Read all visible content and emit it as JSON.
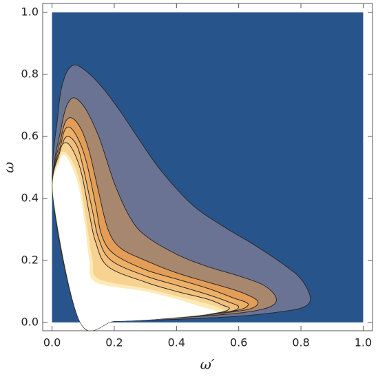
{
  "chart_data": {
    "type": "contour",
    "x_label": "ω′",
    "y_label": "ω",
    "xlim": [
      -0.03,
      1.03
    ],
    "ylim": [
      -0.027,
      1.029
    ],
    "xticks": [
      {
        "value": 0,
        "label": "0.0"
      },
      0.2,
      0.4,
      0.6,
      0.8,
      {
        "value": 1,
        "label": "1.0"
      }
    ],
    "yticks": [
      {
        "value": 0,
        "label": "0.0"
      },
      0.2,
      0.4,
      0.6,
      0.8,
      {
        "value": 1,
        "label": "1.0"
      }
    ],
    "line_color": "#2a2a2a",
    "series": [
      {
        "color": "#27548a",
        "outline": false,
        "x": [
          0,
          1,
          1,
          0
        ],
        "y": [
          0,
          0,
          1,
          1
        ]
      },
      {
        "color": "#6b7394",
        "outline": true,
        "x": [
          0.004,
          0.02,
          0.04,
          0.07,
          0.11,
          0.16,
          0.22,
          0.28,
          0.35,
          0.45,
          0.55,
          0.65,
          0.74,
          0.8,
          0.83,
          0.81,
          0.74,
          0.6,
          0.4,
          0.2,
          0.09
        ],
        "y": [
          0.4,
          0.68,
          0.79,
          0.83,
          0.81,
          0.76,
          0.68,
          0.59,
          0.49,
          0.38,
          0.31,
          0.25,
          0.19,
          0.14,
          0.08,
          0.05,
          0.035,
          0.02,
          0.01,
          0.004,
          0.002
        ]
      },
      {
        "color": "#a8876f",
        "outline": true,
        "x": [
          0.004,
          0.03,
          0.06,
          0.1,
          0.15,
          0.2,
          0.25,
          0.3,
          0.4,
          0.5,
          0.6,
          0.68,
          0.72,
          0.7,
          0.6,
          0.4,
          0.2,
          0.09
        ],
        "y": [
          0.4,
          0.63,
          0.72,
          0.7,
          0.6,
          0.45,
          0.34,
          0.28,
          0.22,
          0.18,
          0.15,
          0.12,
          0.08,
          0.05,
          0.03,
          0.015,
          0.005,
          0.002
        ]
      },
      {
        "color": "#e39d56",
        "outline": true,
        "x": [
          0.004,
          0.03,
          0.055,
          0.09,
          0.12,
          0.15,
          0.18,
          0.22,
          0.3,
          0.4,
          0.5,
          0.6,
          0.66,
          0.64,
          0.55,
          0.4,
          0.2,
          0.09
        ],
        "y": [
          0.4,
          0.6,
          0.66,
          0.63,
          0.55,
          0.42,
          0.3,
          0.24,
          0.2,
          0.16,
          0.13,
          0.1,
          0.07,
          0.045,
          0.03,
          0.015,
          0.005,
          0.002
        ]
      },
      {
        "color": "#eeb067",
        "outline": true,
        "x": [
          0.004,
          0.03,
          0.05,
          0.08,
          0.11,
          0.14,
          0.16,
          0.2,
          0.3,
          0.4,
          0.5,
          0.58,
          0.63,
          0.6,
          0.5,
          0.35,
          0.2,
          0.09
        ],
        "y": [
          0.4,
          0.58,
          0.63,
          0.6,
          0.52,
          0.38,
          0.28,
          0.22,
          0.17,
          0.14,
          0.11,
          0.08,
          0.06,
          0.04,
          0.028,
          0.014,
          0.005,
          0.002
        ]
      },
      {
        "color": "#f3c07b",
        "outline": true,
        "x": [
          0.004,
          0.03,
          0.05,
          0.08,
          0.1,
          0.13,
          0.15,
          0.19,
          0.3,
          0.4,
          0.5,
          0.57,
          0.6,
          0.57,
          0.45,
          0.3,
          0.2,
          0.09
        ],
        "y": [
          0.4,
          0.56,
          0.6,
          0.57,
          0.5,
          0.36,
          0.27,
          0.2,
          0.15,
          0.12,
          0.09,
          0.065,
          0.05,
          0.035,
          0.025,
          0.012,
          0.005,
          0.002
        ]
      },
      {
        "color": "#f8d291",
        "outline": true,
        "x": [
          0.004,
          0.025,
          0.045,
          0.07,
          0.095,
          0.12,
          0.14,
          0.18,
          0.3,
          0.4,
          0.5,
          0.55,
          0.57,
          0.54,
          0.45,
          0.3,
          0.2,
          0.09
        ],
        "y": [
          0.4,
          0.55,
          0.58,
          0.55,
          0.48,
          0.35,
          0.26,
          0.18,
          0.13,
          0.1,
          0.075,
          0.055,
          0.045,
          0.032,
          0.022,
          0.01,
          0.004,
          0.002
        ]
      },
      {
        "color": "#fcebb8",
        "outline": false,
        "x": [
          0.004,
          0.025,
          0.04,
          0.065,
          0.09,
          0.11,
          0.13,
          0.15,
          0.3,
          0.4,
          0.5,
          0.55,
          0.52,
          0.45,
          0.3,
          0.2,
          0.09
        ],
        "y": [
          0.4,
          0.53,
          0.55,
          0.52,
          0.45,
          0.33,
          0.2,
          0.14,
          0.11,
          0.085,
          0.06,
          0.04,
          0.03,
          0.02,
          0.008,
          0.004,
          0.002
        ]
      },
      {
        "color": "#ffffff",
        "outline": false,
        "x": [
          0.006,
          0.025,
          0.04,
          0.06,
          0.085,
          0.105,
          0.12,
          0.14,
          0.3,
          0.4,
          0.48,
          0.53,
          0.5,
          0.4,
          0.3,
          0.2,
          0.09
        ],
        "y": [
          0.4,
          0.52,
          0.54,
          0.51,
          0.44,
          0.32,
          0.2,
          0.13,
          0.1,
          0.075,
          0.05,
          0.035,
          0.028,
          0.017,
          0.008,
          0.004,
          0.003
        ]
      }
    ]
  }
}
